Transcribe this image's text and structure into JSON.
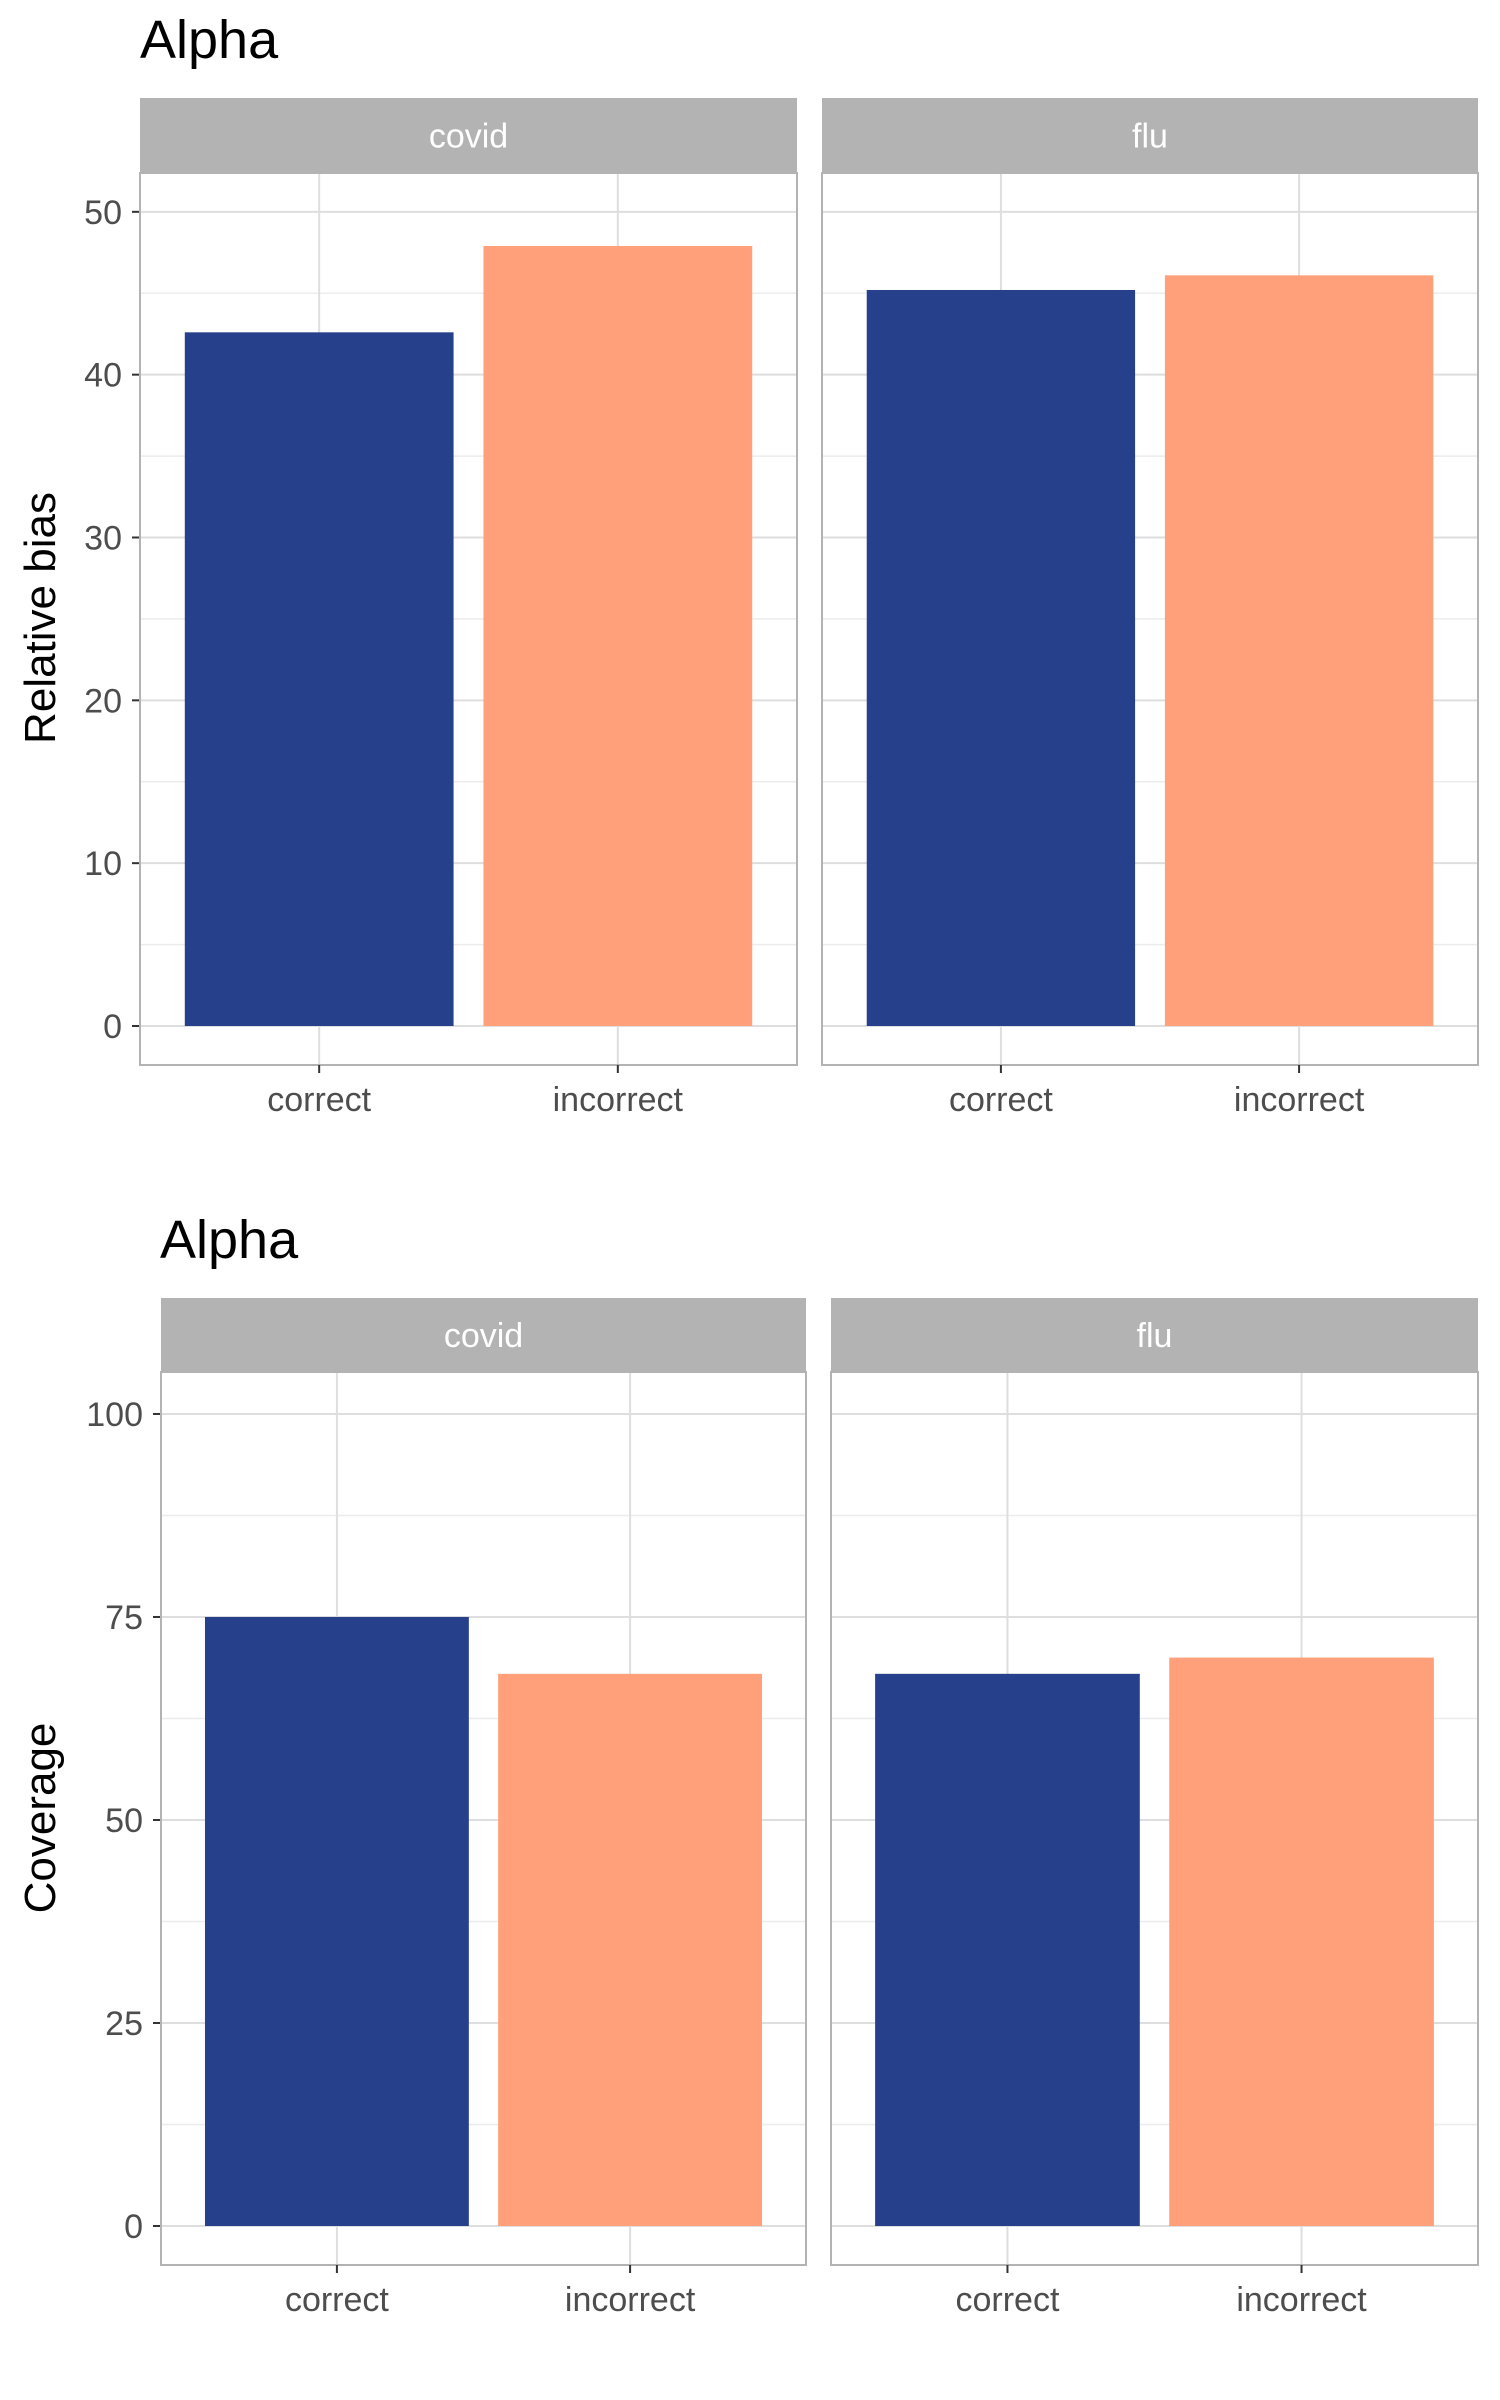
{
  "colors": {
    "correct": "#27408b",
    "incorrect": "#ffa07a",
    "strip_bg": "#b3b3b3",
    "strip_text": "#ffffff",
    "grid_major": "#dedede",
    "grid_minor": "#ececec",
    "panel_border": "#b3b3b3",
    "axis_text": "#4d4d4d"
  },
  "chart_data": [
    {
      "type": "bar",
      "title": "Alpha",
      "xlabel": "",
      "ylabel": "Relative bias",
      "ylim": [
        0,
        52.2
      ],
      "yticks": [
        "0",
        "10",
        "20",
        "30",
        "40",
        "50"
      ],
      "ytick_values": [
        0,
        10,
        20,
        30,
        40,
        50
      ],
      "categories": [
        "correct",
        "incorrect"
      ],
      "facets": [
        {
          "label": "covid",
          "values": [
            42.6,
            47.9
          ]
        },
        {
          "label": "flu",
          "values": [
            45.2,
            46.1
          ]
        }
      ],
      "grid": true,
      "legend": "none"
    },
    {
      "type": "bar",
      "title": "Alpha",
      "xlabel": "",
      "ylabel": "Coverage",
      "ylim": [
        0,
        104.8
      ],
      "yticks": [
        "0",
        "25",
        "50",
        "75",
        "100"
      ],
      "ytick_values": [
        0,
        25,
        50,
        75,
        100
      ],
      "categories": [
        "correct",
        "incorrect"
      ],
      "facets": [
        {
          "label": "covid",
          "values": [
            75,
            68
          ]
        },
        {
          "label": "flu",
          "values": [
            68,
            70
          ]
        }
      ],
      "grid": true,
      "legend": "none"
    }
  ]
}
